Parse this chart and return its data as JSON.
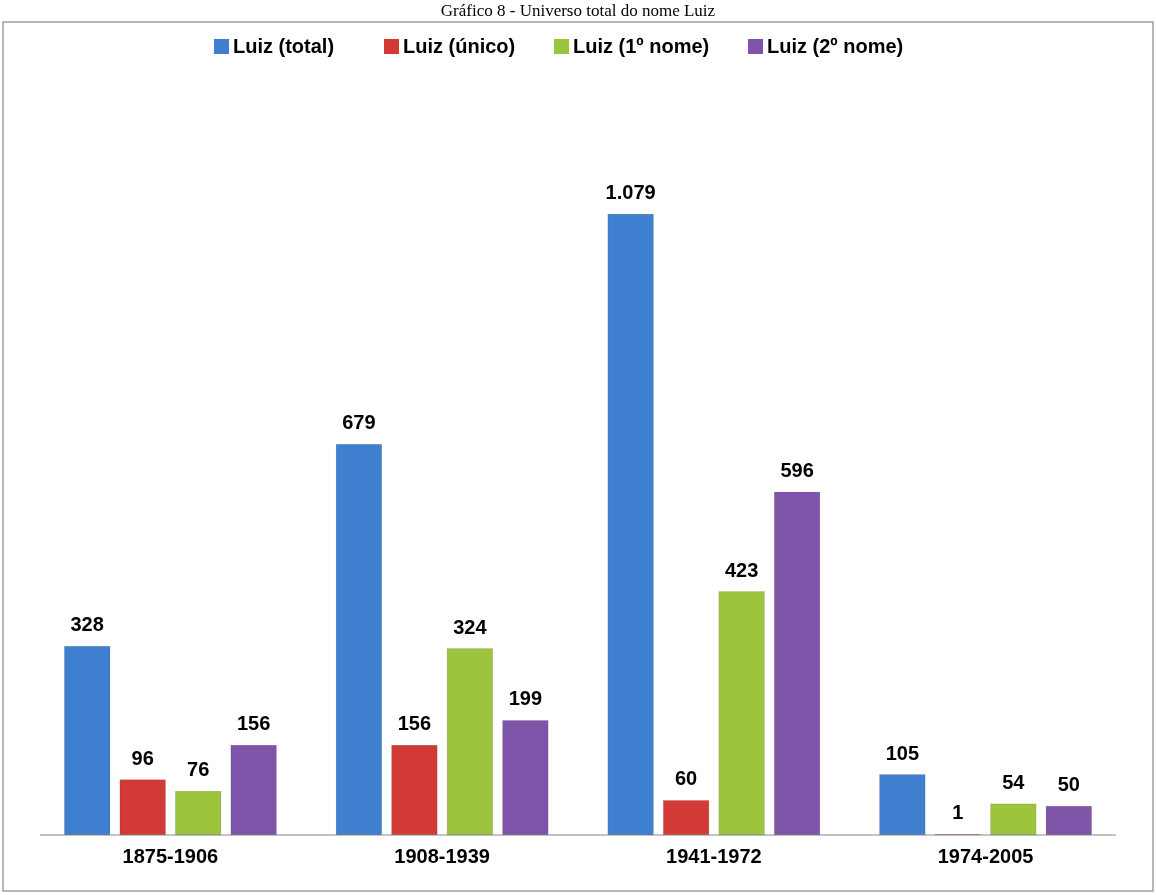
{
  "chart_data": {
    "type": "bar",
    "title": "Gráfico 8 - Universo total do nome Luiz",
    "categories": [
      "1875-1906",
      "1908-1939",
      "1941-1972",
      "1974-2005"
    ],
    "series": [
      {
        "name": "Luiz (total)",
        "color": "#3f7fcf",
        "values": [
          328,
          679,
          1079,
          105
        ],
        "value_labels": [
          "328",
          "679",
          "1.079",
          "105"
        ]
      },
      {
        "name": "Luiz (único)",
        "color": "#d23a35",
        "values": [
          96,
          156,
          60,
          1
        ],
        "value_labels": [
          "96",
          "156",
          "60",
          "1"
        ]
      },
      {
        "name": "Luiz (1º nome)",
        "color": "#9cc43c",
        "values": [
          76,
          324,
          423,
          54
        ],
        "value_labels": [
          "76",
          "324",
          "423",
          "54"
        ]
      },
      {
        "name": "Luiz (2º nome)",
        "color": "#7e55a8",
        "values": [
          156,
          199,
          596,
          50
        ],
        "value_labels": [
          "156",
          "199",
          "596",
          "50"
        ]
      }
    ],
    "legend": "top",
    "grid": false
  }
}
